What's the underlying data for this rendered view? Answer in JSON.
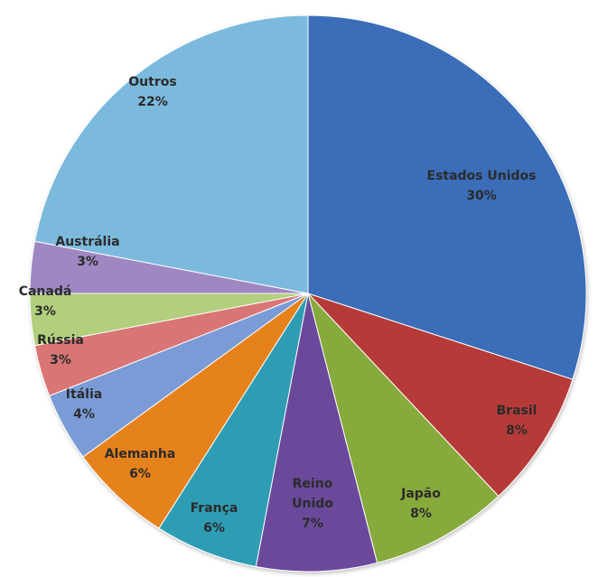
{
  "chart_data": {
    "type": "pie",
    "title": "",
    "legend": "none",
    "slices": [
      {
        "name": "Estados Unidos",
        "label": "30%",
        "value": 30,
        "color": "#3b6db8"
      },
      {
        "name": "Brasil",
        "label": "8%",
        "value": 8,
        "color": "#b63a37"
      },
      {
        "name": "Japão",
        "label": "8%",
        "value": 8,
        "color": "#86aa3a"
      },
      {
        "name": "Reino Unido",
        "label": "7%",
        "value": 7,
        "color": "#6a4a9a"
      },
      {
        "name": "França",
        "label": "6%",
        "value": 6,
        "color": "#2f9db4"
      },
      {
        "name": "Alemanha",
        "label": "6%",
        "value": 6,
        "color": "#e6821f"
      },
      {
        "name": "Itália",
        "label": "4%",
        "value": 4,
        "color": "#7a9bd6"
      },
      {
        "name": "Rússia",
        "label": "3%",
        "value": 3,
        "color": "#d97575"
      },
      {
        "name": "Canadá",
        "label": "3%",
        "value": 3,
        "color": "#b2cf7d"
      },
      {
        "name": "Austrália",
        "label": "3%",
        "value": 3,
        "color": "#9f88c2"
      },
      {
        "name": "Outros",
        "label": "22%",
        "value": 22,
        "color": "#7bbadd"
      }
    ]
  }
}
